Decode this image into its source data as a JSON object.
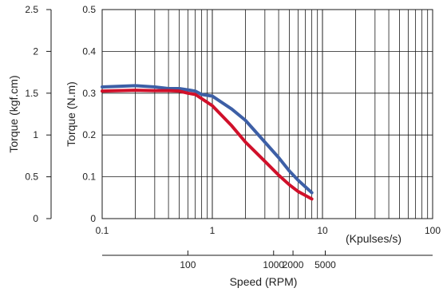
{
  "chart_data": {
    "type": "line",
    "title": "",
    "xlabel": "(Kpulses/s)",
    "x_scale": "log",
    "xlim": [
      0.1,
      100
    ],
    "x_ticks": [
      "0.1",
      "1",
      "10",
      "100"
    ],
    "x_tick_values": [
      0.1,
      1,
      10,
      100
    ],
    "ylabel": "Torque (N.m)",
    "ylim": [
      0,
      0.5
    ],
    "y_ticks": [
      "0",
      "0.1",
      "0.2",
      "0.3",
      "0.4",
      "0.5"
    ],
    "y_tick_values": [
      0,
      0.1,
      0.2,
      0.3,
      0.4,
      0.5
    ],
    "y2label": "Torque (kgf.cm)",
    "y2lim": [
      0,
      2.5
    ],
    "y2_ticks": [
      "0",
      "0.5",
      "1",
      "1.5",
      "2",
      "2.5"
    ],
    "y2_tick_values": [
      0,
      0.5,
      1,
      1.5,
      2,
      2.5
    ],
    "x2label": "Speed (RPM)",
    "x2_ticks": [
      "100",
      "1000",
      "2000",
      "5000"
    ],
    "x2_tick_values_kpps": [
      0.6,
      3.6,
      5.4,
      10.6
    ],
    "grid": true,
    "series": [
      {
        "color": "#3d5fa6",
        "x": [
          0.1,
          0.2,
          0.3,
          0.4,
          0.5,
          0.6,
          0.7,
          0.8,
          1.0,
          1.5,
          2.0,
          3.0,
          4.0,
          5.0,
          6.0,
          8.0
        ],
        "y": [
          0.315,
          0.318,
          0.315,
          0.311,
          0.311,
          0.308,
          0.305,
          0.297,
          0.293,
          0.262,
          0.235,
          0.183,
          0.146,
          0.114,
          0.092,
          0.062
        ]
      },
      {
        "color": "#d0102a",
        "x": [
          0.1,
          0.2,
          0.3,
          0.4,
          0.5,
          0.6,
          0.7,
          0.8,
          1.0,
          1.5,
          2.0,
          3.0,
          4.0,
          5.0,
          6.0,
          8.0
        ],
        "y": [
          0.305,
          0.307,
          0.306,
          0.306,
          0.305,
          0.3,
          0.297,
          0.287,
          0.27,
          0.222,
          0.183,
          0.137,
          0.104,
          0.081,
          0.065,
          0.047
        ]
      }
    ]
  }
}
